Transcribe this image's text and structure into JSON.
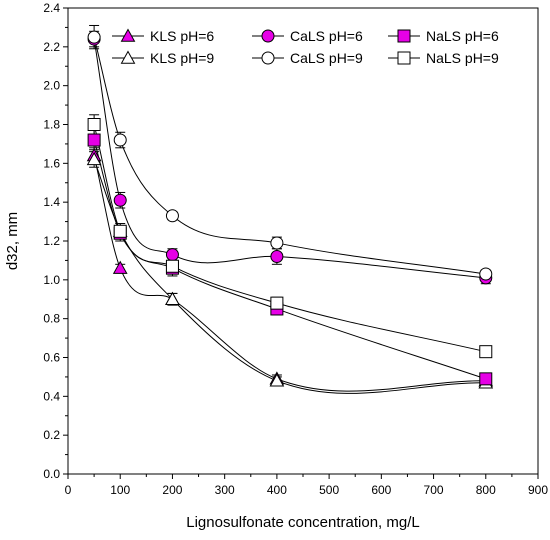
{
  "chart_data": {
    "type": "line",
    "xlabel": "Lignosulfonate concentration, mg/L",
    "ylabel": "d32, mm",
    "xlim": [
      0,
      900
    ],
    "ylim": [
      0,
      2.4
    ],
    "xticks": [
      0,
      100,
      200,
      300,
      400,
      500,
      600,
      700,
      800,
      900
    ],
    "yticks": [
      "0.0",
      "0.2",
      "0.4",
      "0.6",
      "0.8",
      "1.0",
      "1.2",
      "1.4",
      "1.6",
      "1.8",
      "2.0",
      "2.2",
      "2.4"
    ],
    "grid": false,
    "legend_position": "top",
    "x": [
      50,
      100,
      200,
      400,
      800
    ],
    "series": [
      {
        "name": "KLS pH=6",
        "marker": "triangle",
        "filled": true,
        "color": "#e600e6",
        "values": [
          1.64,
          1.06,
          0.9,
          0.49,
          0.48
        ],
        "errors": [
          0.04,
          0.02,
          0.03,
          0.02,
          0.02
        ]
      },
      {
        "name": "KLS pH=9",
        "marker": "triangle",
        "filled": false,
        "color": "#ffffff",
        "values": [
          1.62,
          1.25,
          0.9,
          0.48,
          0.47
        ],
        "errors": [
          0.04,
          0.03,
          0.03,
          0.02,
          0.02
        ]
      },
      {
        "name": "CaLS pH=6",
        "marker": "circle",
        "filled": true,
        "color": "#e600e6",
        "values": [
          2.24,
          1.41,
          1.13,
          1.12,
          1.01
        ],
        "errors": [
          0.04,
          0.04,
          0.03,
          0.04,
          0.03
        ]
      },
      {
        "name": "CaLS pH=9",
        "marker": "circle",
        "filled": false,
        "color": "#ffffff",
        "values": [
          2.25,
          1.72,
          1.33,
          1.19,
          1.03
        ],
        "errors": [
          0.06,
          0.04,
          0.02,
          0.03,
          0.02
        ]
      },
      {
        "name": "NaLS pH=6",
        "marker": "square",
        "filled": true,
        "color": "#e600e6",
        "values": [
          1.72,
          1.24,
          1.06,
          0.85,
          0.49
        ],
        "errors": [
          0.05,
          0.04,
          0.04,
          0.03,
          0.02
        ]
      },
      {
        "name": "NaLS pH=9",
        "marker": "square",
        "filled": false,
        "color": "#ffffff",
        "values": [
          1.8,
          1.25,
          1.07,
          0.88,
          0.63
        ],
        "errors": [
          0.05,
          0.04,
          0.04,
          0.03,
          0.02
        ]
      }
    ],
    "colors": {
      "filled_marker": "#e600e6",
      "line": "#000000",
      "axis": "#000000"
    }
  }
}
